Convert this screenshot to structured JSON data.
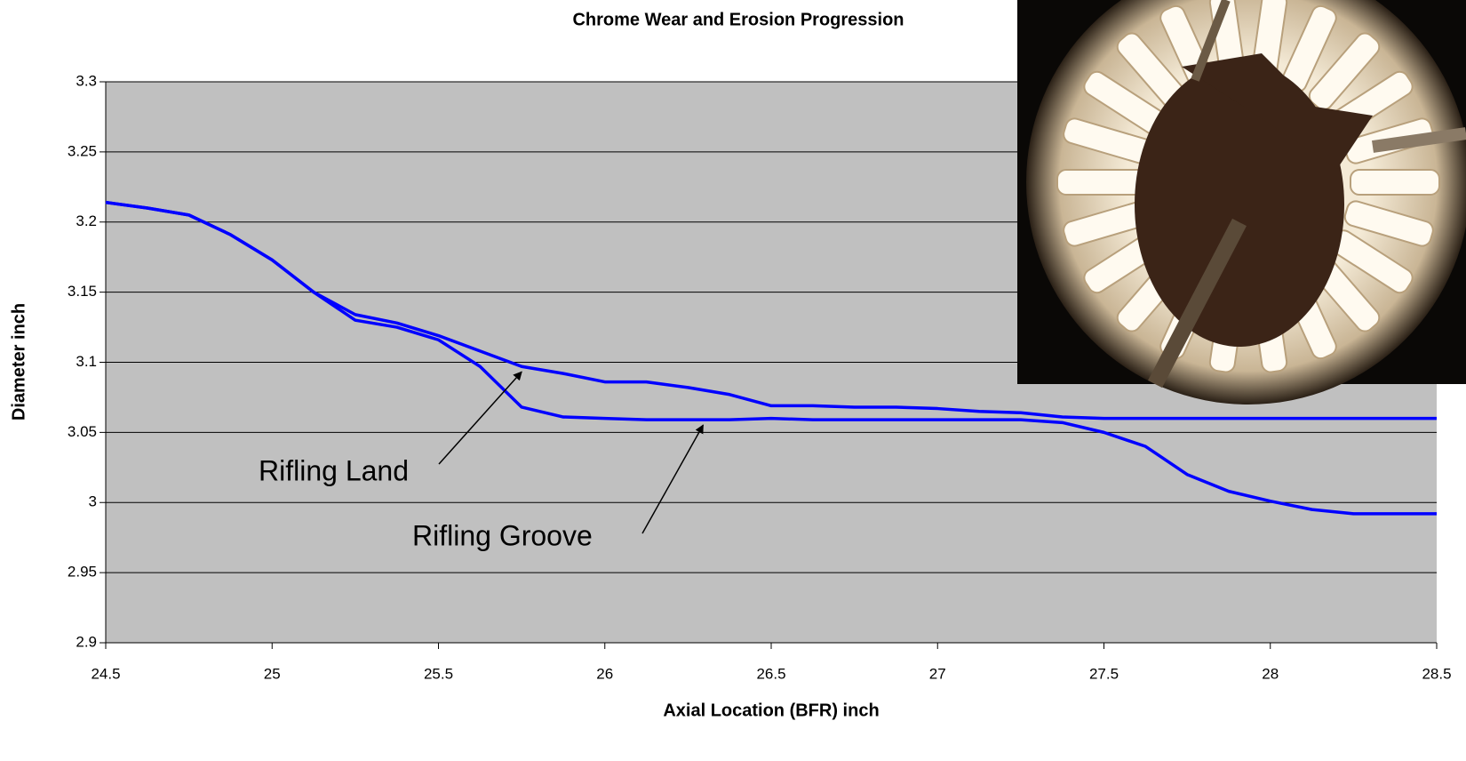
{
  "chart_data": {
    "type": "line",
    "title": "Chrome Wear and Erosion Progression",
    "x_label": "Axial Location (BFR) inch",
    "y_label": "Diameter inch",
    "x": [
      24.5,
      24.625,
      24.75,
      24.875,
      25,
      25.125,
      25.25,
      25.375,
      25.5,
      25.625,
      25.75,
      25.875,
      26,
      26.125,
      26.25,
      26.375,
      26.5,
      26.625,
      26.75,
      26.875,
      27,
      27.125,
      27.25,
      27.375,
      27.5,
      27.625,
      27.75,
      27.875,
      28,
      28.125,
      28.25,
      28.375,
      28.5
    ],
    "series": [
      {
        "name": "Rifling Land",
        "color": "#0000ff",
        "values": [
          3.214,
          3.21,
          3.205,
          3.191,
          3.173,
          3.15,
          3.134,
          3.128,
          3.119,
          3.108,
          3.097,
          3.092,
          3.086,
          3.086,
          3.082,
          3.077,
          3.069,
          3.069,
          3.068,
          3.068,
          3.067,
          3.065,
          3.064,
          3.061,
          3.06,
          3.06,
          3.06,
          3.06,
          3.06,
          3.06,
          3.06,
          3.06,
          3.06
        ]
      },
      {
        "name": "Rifling Groove",
        "color": "#0000ff",
        "values": [
          3.214,
          3.21,
          3.205,
          3.191,
          3.173,
          3.15,
          3.13,
          3.125,
          3.116,
          3.097,
          3.068,
          3.061,
          3.06,
          3.059,
          3.059,
          3.059,
          3.06,
          3.059,
          3.059,
          3.059,
          3.059,
          3.059,
          3.059,
          3.057,
          3.05,
          3.04,
          3.02,
          3.008,
          3.001,
          2.995,
          2.992,
          2.992,
          2.992
        ]
      }
    ],
    "xlim": [
      24.5,
      28.5
    ],
    "xticks": [
      24.5,
      25,
      25.5,
      26,
      26.5,
      27,
      27.5,
      28,
      28.5
    ],
    "ylim": [
      2.9,
      3.3
    ],
    "yticks": [
      2.9,
      2.95,
      3,
      3.05,
      3.1,
      3.15,
      3.2,
      3.25,
      3.3
    ],
    "grid": true,
    "plot_background": "#c0c0c0"
  }
}
